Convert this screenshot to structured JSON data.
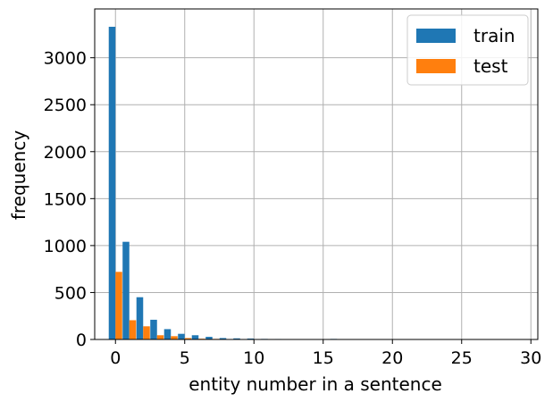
{
  "chart_data": {
    "type": "bar",
    "title": "",
    "xlabel": "entity number in a sentence",
    "ylabel": "frequency",
    "xlim": [
      -1.5,
      30.5
    ],
    "ylim": [
      0,
      3520
    ],
    "xticks": [
      0,
      5,
      10,
      15,
      20,
      25,
      30
    ],
    "yticks": [
      0,
      500,
      1000,
      1500,
      2000,
      2500,
      3000
    ],
    "grid": true,
    "legend_position": "top-right",
    "bin_width": 0.97,
    "series": [
      {
        "name": "train",
        "color": "#1f77b4",
        "x": [
          0,
          1,
          2,
          3,
          4,
          5,
          6,
          7,
          8,
          9,
          10,
          11,
          12,
          13,
          14,
          15,
          16,
          17,
          18
        ],
        "values": [
          3330,
          1040,
          450,
          210,
          110,
          60,
          45,
          28,
          15,
          12,
          10,
          6,
          5,
          4,
          3,
          2,
          6,
          1,
          1
        ]
      },
      {
        "name": "test",
        "color": "#ff7f0e",
        "x": [
          0,
          1,
          2,
          3,
          4,
          5,
          6,
          7,
          8,
          9,
          10,
          11
        ],
        "values": [
          720,
          205,
          140,
          45,
          35,
          15,
          8,
          6,
          4,
          3,
          2,
          1
        ]
      }
    ]
  }
}
